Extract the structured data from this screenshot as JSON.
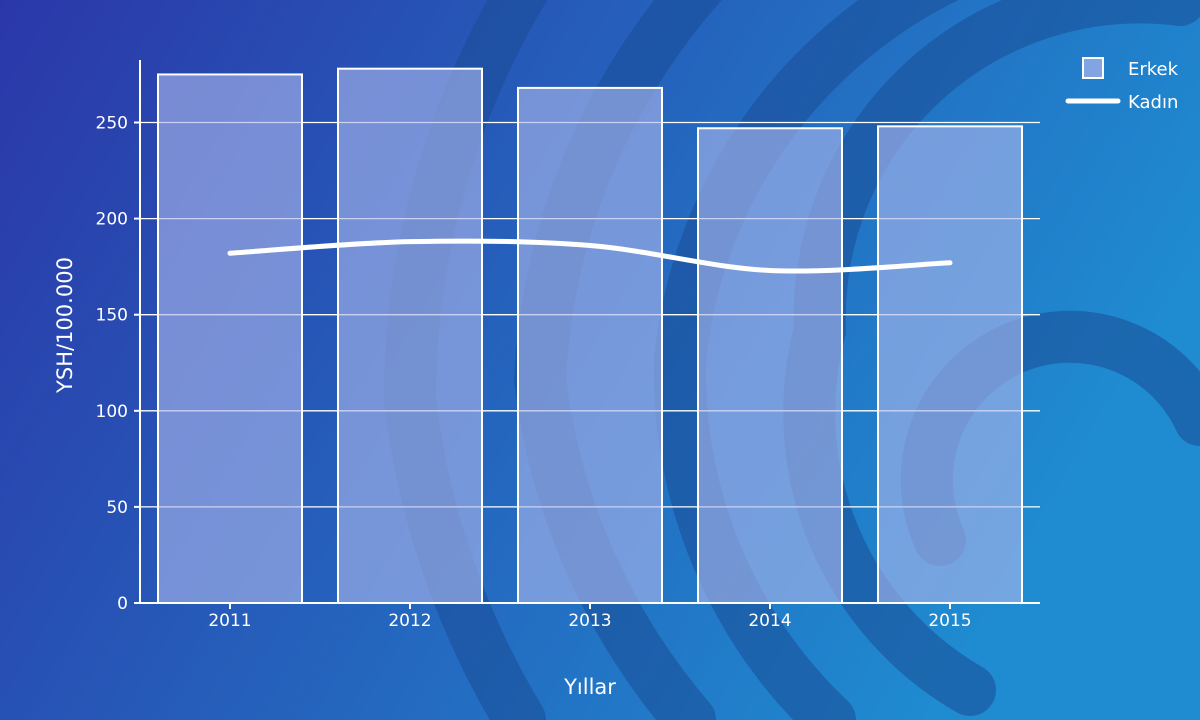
{
  "chart_data": {
    "type": "bar",
    "categories": [
      "2011",
      "2012",
      "2013",
      "2014",
      "2015"
    ],
    "series": [
      {
        "name": "Erkek",
        "type": "bar",
        "values": [
          275,
          278,
          268,
          247,
          248
        ]
      },
      {
        "name": "Kadın",
        "type": "line",
        "values": [
          182,
          188,
          186,
          173,
          177
        ]
      }
    ],
    "xlabel": "Yıllar",
    "ylabel": "YSH/100.000",
    "ylim": [
      0,
      275
    ],
    "yticks": [
      "0",
      "50",
      "100",
      "150",
      "200",
      "250"
    ],
    "grid": true,
    "legend": "top-right"
  },
  "colors": {
    "background_start": "#2b37a8",
    "background_end": "#1f8bd0",
    "bar_fill": "#a9b7ec",
    "line": "#ffffff",
    "axis": "#ffffff"
  }
}
